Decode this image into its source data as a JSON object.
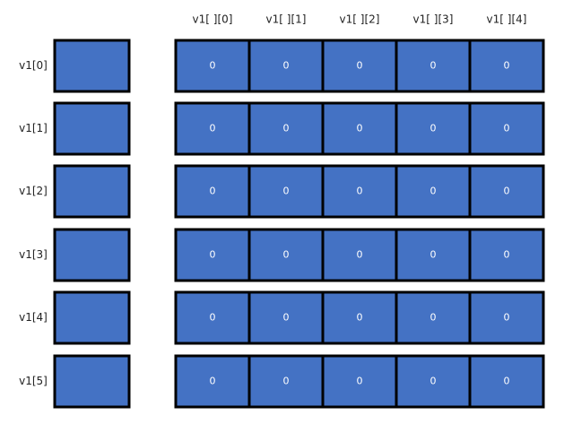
{
  "column_labels": [
    "v1[ ][0]",
    "v1[ ][1]",
    "v1[ ][2]",
    "v1[ ][3]",
    "v1[ ][4]"
  ],
  "rows": [
    {
      "label": "v1[0]",
      "cells": [
        0,
        0,
        0,
        0,
        0
      ]
    },
    {
      "label": "v1[1]",
      "cells": [
        0,
        0,
        0,
        0,
        0
      ]
    },
    {
      "label": "v1[2]",
      "cells": [
        0,
        0,
        0,
        0,
        0
      ]
    },
    {
      "label": "v1[3]",
      "cells": [
        0,
        0,
        0,
        0,
        0
      ]
    },
    {
      "label": "v1[4]",
      "cells": [
        0,
        0,
        0,
        0,
        0
      ]
    },
    {
      "label": "v1[5]",
      "cells": [
        0,
        0,
        0,
        0,
        0
      ]
    }
  ]
}
